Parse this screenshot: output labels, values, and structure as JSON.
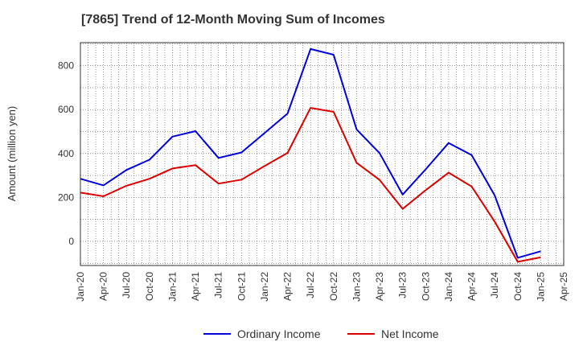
{
  "chart_data": {
    "type": "line",
    "title": "[7865]  Trend of 12-Month Moving Sum of Incomes",
    "xlabel": "",
    "ylabel": "Amount (million yen)",
    "ylim": [
      -110,
      905
    ],
    "yticks": [
      0,
      200,
      400,
      600,
      800
    ],
    "grid": true,
    "legend_position": "bottom-center",
    "x": [
      "Jan-20",
      "Apr-20",
      "Jul-20",
      "Oct-20",
      "Jan-21",
      "Apr-21",
      "Jul-21",
      "Oct-21",
      "Jan-22",
      "Apr-22",
      "Jul-22",
      "Oct-22",
      "Jan-23",
      "Apr-23",
      "Jul-23",
      "Oct-23",
      "Jan-24",
      "Apr-24",
      "Jul-24",
      "Oct-24",
      "Jan-25",
      "Apr-25"
    ],
    "series": [
      {
        "name": "Ordinary Income",
        "color": "#0000dd",
        "values": [
          285,
          255,
          325,
          372,
          477,
          502,
          380,
          405,
          493,
          582,
          876,
          850,
          510,
          402,
          213,
          328,
          448,
          393,
          210,
          -75,
          -45,
          null
        ]
      },
      {
        "name": "Net Income",
        "color": "#dd0000",
        "values": [
          222,
          205,
          253,
          285,
          332,
          347,
          263,
          281,
          343,
          403,
          608,
          590,
          358,
          280,
          148,
          233,
          313,
          250,
          90,
          -93,
          -73,
          null
        ]
      }
    ]
  }
}
